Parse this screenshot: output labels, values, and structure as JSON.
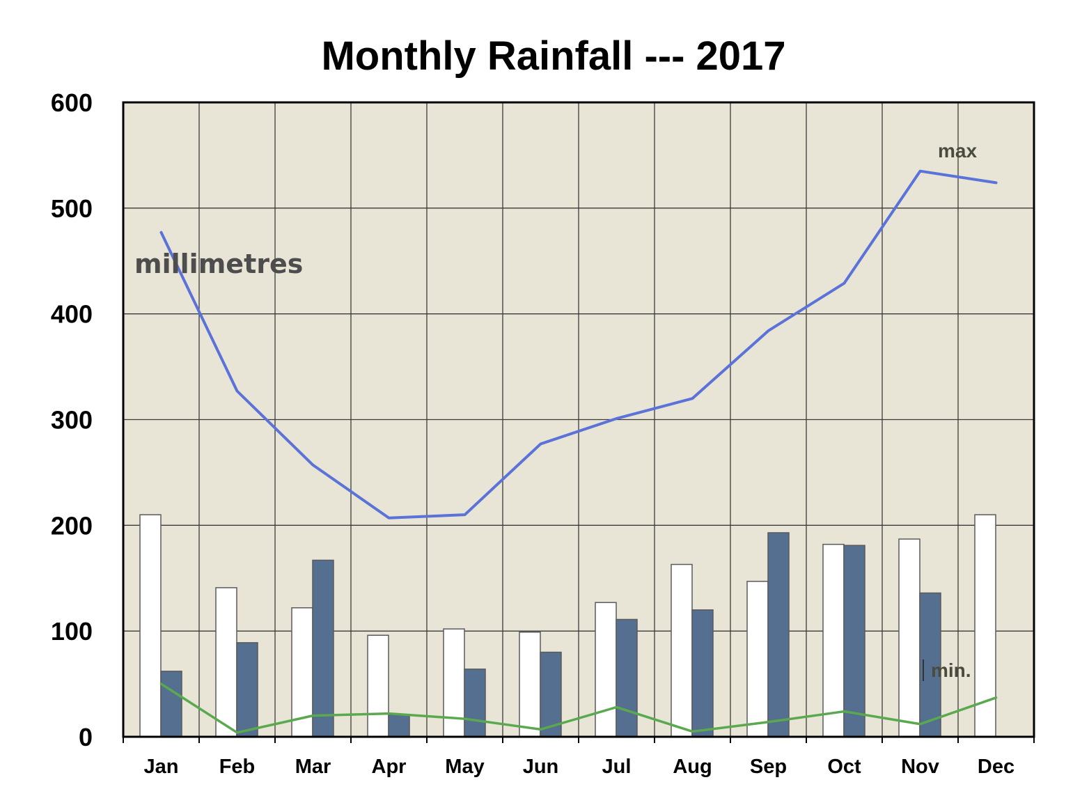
{
  "chart_data": {
    "type": "bar",
    "title": "Monthly Rainfall --- 2017",
    "unit_label": "millimetres",
    "categories": [
      "Jan",
      "Feb",
      "Mar",
      "Apr",
      "May",
      "Jun",
      "Jul",
      "Aug",
      "Sep",
      "Oct",
      "Nov",
      "Dec"
    ],
    "ylim": [
      0,
      600
    ],
    "yticks": [
      "0",
      "100",
      "200",
      "300",
      "400",
      "500",
      "600"
    ],
    "grid": true,
    "bar_series": [
      {
        "color": "#ffffff",
        "values": [
          210,
          141,
          122,
          96,
          102,
          99,
          127,
          163,
          147,
          182,
          187,
          210
        ]
      },
      {
        "color": "#546f8f",
        "values": [
          62,
          89,
          167,
          21,
          64,
          80,
          111,
          120,
          193,
          181,
          136,
          null
        ]
      }
    ],
    "line_series": [
      {
        "name": "max",
        "color": "#5b72d8",
        "values": [
          477,
          327,
          257,
          207,
          210,
          277,
          301,
          320,
          384,
          429,
          535,
          524
        ]
      },
      {
        "name": "min.",
        "color": "#5aa94f",
        "values": [
          50,
          4,
          20,
          22,
          17,
          7,
          28,
          5,
          14,
          24,
          12,
          37
        ]
      }
    ],
    "plot_background": "#e8e4d6"
  }
}
